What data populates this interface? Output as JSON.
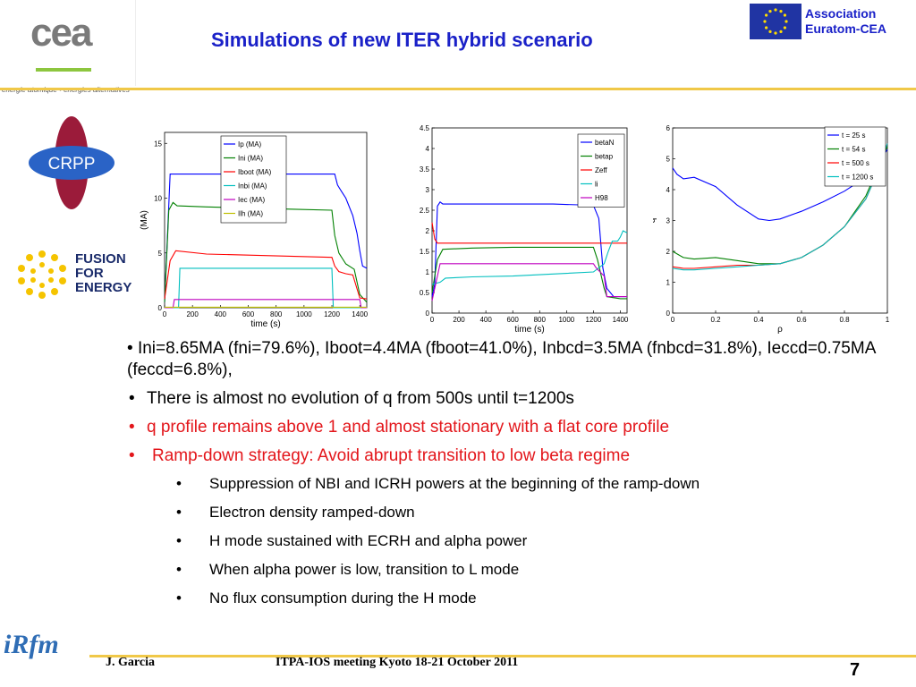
{
  "header": {
    "title": "Simulations of new ITER hybrid scenario",
    "association_line1": "Association",
    "association_line2": "Euratom-CEA",
    "cea_logo": "cea",
    "cea_tagline": "energie atomique • energies alternatives",
    "crpp_logo": "CRPP",
    "f4e_line1": "FUSION",
    "f4e_line2": "FOR",
    "f4e_line3": "ENERGY"
  },
  "chart_data": [
    {
      "type": "line",
      "xlabel": "time (s)",
      "ylabel": "(MA)",
      "xlim": [
        0,
        1450
      ],
      "ylim": [
        0,
        16
      ],
      "xticks": [
        "0",
        "200",
        "400",
        "600",
        "800",
        "1000",
        "1200",
        "1400"
      ],
      "yticks": [
        "0",
        "5",
        "10",
        "15"
      ],
      "legend_position": "top-center",
      "series": [
        {
          "name": "Ip (MA)",
          "color": "#0000ff",
          "x": [
            0,
            40,
            70,
            1220,
            1240,
            1270,
            1300,
            1350,
            1380,
            1400,
            1420,
            1450
          ],
          "y": [
            0.5,
            12.2,
            12.2,
            12.2,
            11.2,
            10.6,
            10.0,
            8.4,
            6.8,
            5.2,
            3.8,
            3.6
          ]
        },
        {
          "name": "Ini (MA)",
          "color": "#008000",
          "x": [
            0,
            30,
            60,
            90,
            300,
            600,
            900,
            1200,
            1220,
            1250,
            1300,
            1360,
            1400,
            1450
          ],
          "y": [
            0.5,
            8.9,
            9.6,
            9.3,
            9.2,
            9.1,
            9.0,
            8.9,
            6.6,
            5.0,
            4.0,
            3.5,
            1.2,
            0.5
          ]
        },
        {
          "name": "Iboot (MA)",
          "color": "#ff0000",
          "x": [
            0,
            40,
            80,
            300,
            600,
            900,
            1200,
            1220,
            1250,
            1300,
            1350,
            1400,
            1450
          ],
          "y": [
            0.8,
            4.3,
            5.2,
            4.9,
            4.8,
            4.7,
            4.6,
            3.8,
            3.3,
            3.1,
            3.0,
            0.9,
            0.8
          ]
        },
        {
          "name": "Inbi (MA)",
          "color": "#00bfbf",
          "x": [
            0,
            100,
            110,
            1200,
            1210,
            1450
          ],
          "y": [
            0,
            0,
            3.6,
            3.6,
            0,
            0
          ]
        },
        {
          "name": "Iec (MA)",
          "color": "#bf00bf",
          "x": [
            0,
            60,
            70,
            1400,
            1410,
            1450
          ],
          "y": [
            0,
            0,
            0.75,
            0.75,
            0,
            0
          ]
        },
        {
          "name": "Ilh (MA)",
          "color": "#bfbf00",
          "x": [
            0,
            1450
          ],
          "y": [
            0.05,
            0.05
          ]
        }
      ]
    },
    {
      "type": "line",
      "xlabel": "time (s)",
      "ylabel": "",
      "xlim": [
        0,
        1450
      ],
      "ylim": [
        0,
        4.5
      ],
      "xticks": [
        "0",
        "200",
        "400",
        "600",
        "800",
        "1000",
        "1200",
        "1400"
      ],
      "yticks": [
        "0",
        "0.5",
        "1",
        "1.5",
        "2",
        "2.5",
        "3",
        "3.5",
        "4",
        "4.5"
      ],
      "legend_position": "top-right",
      "series": [
        {
          "name": "betaN",
          "color": "#0000ff",
          "x": [
            0,
            20,
            40,
            60,
            80,
            300,
            600,
            900,
            1200,
            1240,
            1270,
            1300,
            1350,
            1400,
            1450
          ],
          "y": [
            0.4,
            0.7,
            2.6,
            2.7,
            2.65,
            2.65,
            2.65,
            2.65,
            2.62,
            2.3,
            1.1,
            0.6,
            0.4,
            0.4,
            0.4
          ]
        },
        {
          "name": "betap",
          "color": "#008000",
          "x": [
            0,
            40,
            80,
            300,
            600,
            900,
            1200,
            1230,
            1280,
            1300,
            1400,
            1450
          ],
          "y": [
            0.5,
            1.3,
            1.55,
            1.58,
            1.6,
            1.6,
            1.6,
            1.3,
            0.6,
            0.4,
            0.35,
            0.35
          ]
        },
        {
          "name": "Zeff",
          "color": "#ff0000",
          "x": [
            0,
            20,
            40,
            1450
          ],
          "y": [
            2.2,
            1.8,
            1.7,
            1.7
          ]
        },
        {
          "name": "li",
          "color": "#00bfbf",
          "x": [
            0,
            60,
            100,
            300,
            600,
            900,
            1200,
            1240,
            1280,
            1310,
            1340,
            1380,
            1400,
            1420,
            1450
          ],
          "y": [
            0.7,
            0.75,
            0.85,
            0.88,
            0.9,
            0.95,
            1.0,
            1.1,
            1.2,
            1.5,
            1.75,
            1.75,
            1.85,
            2.0,
            1.95
          ]
        },
        {
          "name": "H98",
          "color": "#bf00bf",
          "x": [
            0,
            40,
            60,
            1200,
            1220,
            1280,
            1300,
            1450
          ],
          "y": [
            0.3,
            0.9,
            1.2,
            1.2,
            1.1,
            0.9,
            0.4,
            0.4
          ]
        }
      ]
    },
    {
      "type": "line",
      "xlabel": "ρ",
      "ylabel": "q",
      "xlim": [
        0,
        1
      ],
      "ylim": [
        0,
        6
      ],
      "xticks": [
        "0",
        "0.2",
        "0.4",
        "0.6",
        "0.8",
        "1"
      ],
      "yticks": [
        "0",
        "1",
        "2",
        "3",
        "4",
        "5",
        "6"
      ],
      "legend_position": "top-right",
      "series": [
        {
          "name": "t = 25 s",
          "color": "#0000ff",
          "x": [
            0,
            0.02,
            0.05,
            0.1,
            0.2,
            0.3,
            0.4,
            0.45,
            0.5,
            0.6,
            0.7,
            0.8,
            0.9,
            0.95,
            1
          ],
          "y": [
            4.7,
            4.5,
            4.35,
            4.4,
            4.1,
            3.5,
            3.05,
            3.0,
            3.05,
            3.3,
            3.6,
            3.95,
            4.4,
            4.8,
            5.3
          ]
        },
        {
          "name": "t = 54 s",
          "color": "#008000",
          "x": [
            0,
            0.05,
            0.1,
            0.2,
            0.3,
            0.4,
            0.5,
            0.6,
            0.7,
            0.8,
            0.9,
            0.95,
            1
          ],
          "y": [
            2.0,
            1.8,
            1.75,
            1.8,
            1.7,
            1.6,
            1.6,
            1.8,
            2.2,
            2.8,
            3.8,
            4.6,
            5.4
          ]
        },
        {
          "name": "t = 500 s",
          "color": "#ff0000",
          "x": [
            0,
            0.05,
            0.1,
            0.2,
            0.3,
            0.4,
            0.5,
            0.6,
            0.7,
            0.8,
            0.9,
            0.95,
            1
          ],
          "y": [
            1.5,
            1.45,
            1.45,
            1.5,
            1.55,
            1.55,
            1.6,
            1.8,
            2.2,
            2.8,
            3.7,
            4.5,
            5.5
          ]
        },
        {
          "name": "t = 1200 s",
          "color": "#00bfbf",
          "x": [
            0,
            0.05,
            0.1,
            0.2,
            0.3,
            0.4,
            0.5,
            0.6,
            0.7,
            0.8,
            0.9,
            0.95,
            1
          ],
          "y": [
            1.45,
            1.4,
            1.4,
            1.45,
            1.5,
            1.55,
            1.6,
            1.8,
            2.2,
            2.8,
            3.7,
            4.5,
            5.5
          ]
        }
      ]
    }
  ],
  "bullets": {
    "b1": "Ini=8.65MA (fni=79.6%), Iboot=4.4MA (fboot=41.0%), Inbcd=3.5MA (fnbcd=31.8%), Ieccd=0.75MA (feccd=6.8%),",
    "b2": "There is almost no evolution of q from 500s until t=1200s",
    "b3": "q profile remains above 1 and almost stationary with a flat core profile",
    "b4": "Ramp-down strategy: Avoid abrupt transition to low beta regime",
    "sub": [
      "Suppression of NBI and ICRH powers at the beginning of the ramp-down",
      "Electron density ramped-down",
      "H mode sustained with ECRH and alpha power",
      "When alpha power is low, transition to L mode",
      "No flux consumption during the H mode"
    ],
    "marker": "•"
  },
  "footer": {
    "author": "J. Garcia",
    "meeting": "ITPA-IOS meeting Kyoto 18-21 October 2011",
    "page": "7",
    "irfm_logo": "iRfm"
  },
  "colors": {
    "title": "#1a21c8",
    "accent_line": "#f0c848",
    "red_text": "#e3161b"
  }
}
